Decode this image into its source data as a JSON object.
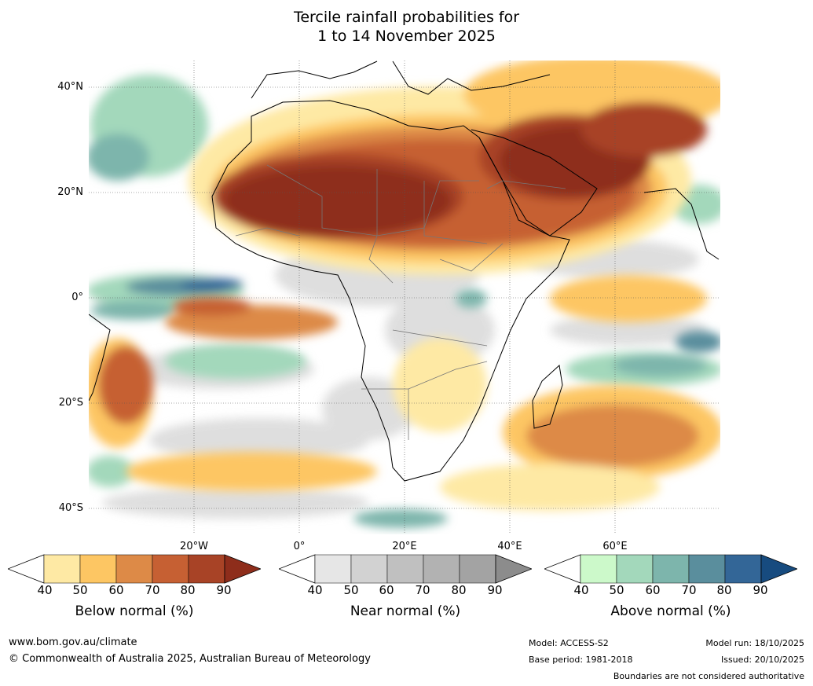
{
  "title": {
    "line1": "Tercile rainfall probabilities for",
    "line2": "1 to 14 November 2025"
  },
  "map": {
    "lat_labels": [
      "40°N",
      "20°N",
      "0°",
      "20°S",
      "40°S"
    ],
    "lon_labels": [
      "20°W",
      "0°",
      "20°E",
      "40°E",
      "60°E"
    ]
  },
  "colorbars": [
    {
      "id": "below",
      "label": "Below normal (%)",
      "ticks": [
        "40",
        "50",
        "60",
        "70",
        "80",
        "90"
      ],
      "colors": [
        "#ffffff",
        "#fee9a4",
        "#fdc663",
        "#dd8a47",
        "#c66033",
        "#a84326",
        "#8e2d1b"
      ]
    },
    {
      "id": "near",
      "label": "Near normal (%)",
      "ticks": [
        "40",
        "50",
        "60",
        "70",
        "80",
        "90"
      ],
      "colors": [
        "#ffffff",
        "#e6e6e6",
        "#d2d2d2",
        "#c0c0c0",
        "#b2b2b2",
        "#a3a3a3",
        "#8c8c8c"
      ]
    },
    {
      "id": "above",
      "label": "Above normal (%)",
      "ticks": [
        "40",
        "50",
        "60",
        "70",
        "80",
        "90"
      ],
      "colors": [
        "#ffffff",
        "#ccf9ca",
        "#a3d8bb",
        "#7db5ac",
        "#5a8e9d",
        "#336697",
        "#174b7f"
      ]
    }
  ],
  "footer": {
    "website": "www.bom.gov.au/climate",
    "copyright": "© Commonwealth of Australia 2025, Australian Bureau of Meteorology",
    "model": "Model: ACCESS-S2",
    "base_period": "Base period: 1981-2018",
    "model_run": "Model run: 18/10/2025",
    "issued": "Issued: 20/10/2025",
    "disclaimer": "Boundaries are not considered authoritative"
  }
}
